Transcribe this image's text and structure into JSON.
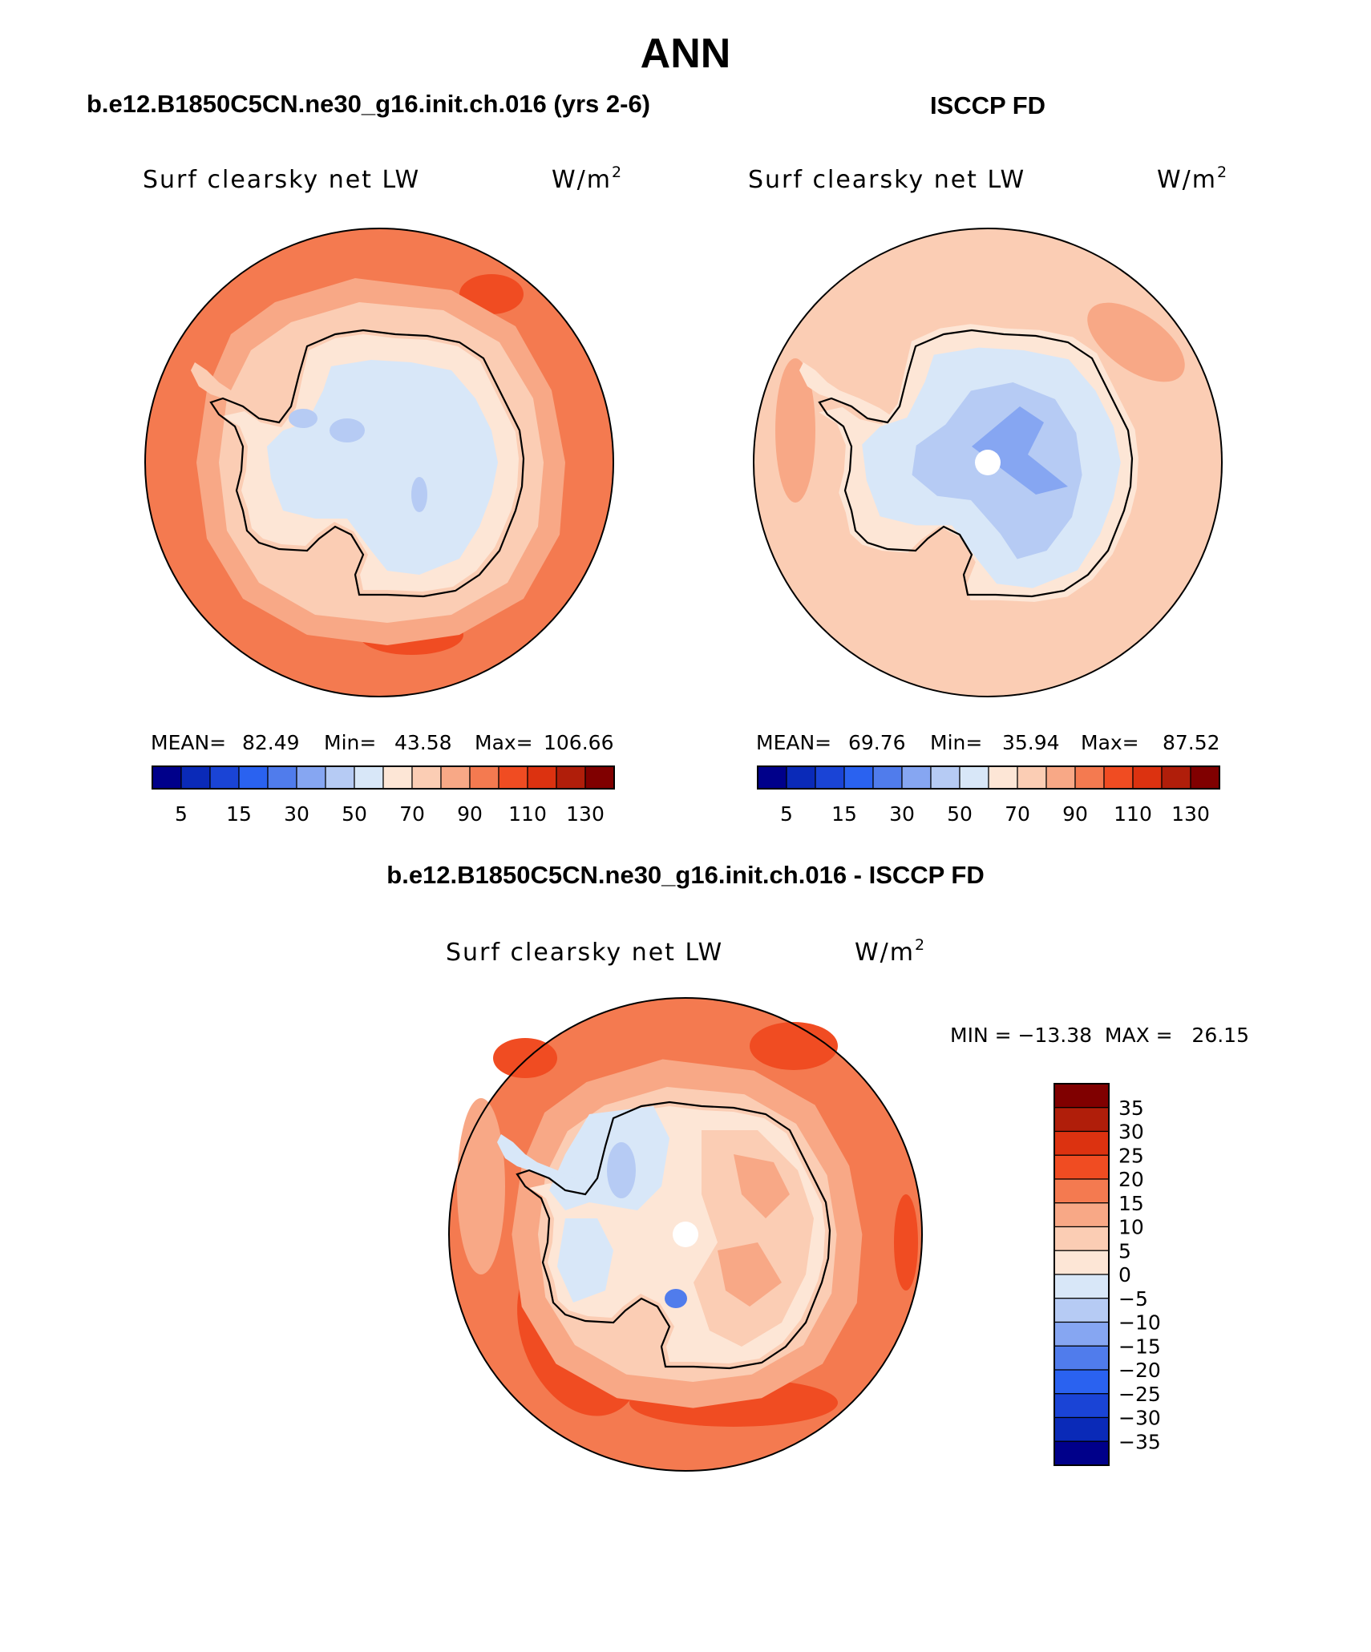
{
  "title": "ANN",
  "panels": [
    {
      "id": "model",
      "header": "b.e12.B1850C5CN.ne30_g16.init.ch.016 (yrs 2-6)",
      "variable": "Surf clearsky net LW",
      "units_base": "W/m",
      "units_exp": "2",
      "stats": {
        "mean_label": "MEAN=",
        "mean": "82.49",
        "min_label": "Min=",
        "min": "43.58",
        "max_label": "Max=",
        "max": "106.66"
      },
      "colorbar_labels": [
        "5",
        "15",
        "30",
        "50",
        "70",
        "90",
        "110",
        "130"
      ]
    },
    {
      "id": "obs",
      "header": "ISCCP FD",
      "variable": "Surf clearsky net LW",
      "units_base": "W/m",
      "units_exp": "2",
      "stats": {
        "mean_label": "MEAN=",
        "mean": "69.76",
        "min_label": "Min=",
        "min": "35.94",
        "max_label": "Max=",
        "max": "87.52"
      },
      "colorbar_labels": [
        "5",
        "15",
        "30",
        "50",
        "70",
        "90",
        "110",
        "130"
      ]
    },
    {
      "id": "diff",
      "header": "b.e12.B1850C5CN.ne30_g16.init.ch.016 - ISCCP FD",
      "variable": "Surf clearsky net LW",
      "units_base": "W/m",
      "units_exp": "2",
      "minmax": "MIN = −13.38  MAX =   26.15",
      "colorbar_labels": [
        "35",
        "30",
        "25",
        "20",
        "15",
        "10",
        "5",
        "0",
        "−5",
        "−10",
        "−15",
        "−20",
        "−25",
        "−30",
        "−35"
      ]
    }
  ],
  "colors": {
    "abs_scale": [
      "#00008a",
      "#0a2ab8",
      "#1a44d6",
      "#2a62f0",
      "#507cec",
      "#86a6f2",
      "#b6cbf4",
      "#d8e7f8",
      "#fde6d6",
      "#fbcdb4",
      "#f8a886",
      "#f47a50",
      "#f04c22",
      "#dc3210",
      "#b01e0a",
      "#800000"
    ],
    "diff_scale": [
      "#800000",
      "#b01e0a",
      "#dc3210",
      "#f04c22",
      "#f47a50",
      "#f8a886",
      "#fbcdb4",
      "#fde6d6",
      "#d8e7f8",
      "#b6cbf4",
      "#86a6f2",
      "#507cec",
      "#2a62f0",
      "#1a44d6",
      "#0a2ab8",
      "#00008a"
    ],
    "pole_hole": "#ffffff",
    "coastline": "#000000"
  }
}
